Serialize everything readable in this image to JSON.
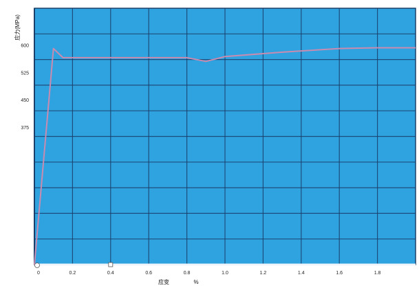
{
  "chart_data": {
    "type": "line",
    "title": "",
    "ylabel": "应力(MPa)",
    "xlabel": "应变",
    "x_unit": "%",
    "ylim": [
      0,
      700
    ],
    "xlim": [
      0,
      2
    ],
    "grid": true,
    "y_ticks": [
      {
        "value": 600,
        "label": "600"
      },
      {
        "value": 525,
        "label": "525"
      },
      {
        "value": 450,
        "label": "450"
      },
      {
        "value": 375,
        "label": "375"
      }
    ],
    "x_ticks": [
      {
        "value": 0,
        "label": "0"
      },
      {
        "value": 0.2,
        "label": "0.2"
      },
      {
        "value": 0.4,
        "label": "0.4"
      },
      {
        "value": 0.6,
        "label": "0.6"
      },
      {
        "value": 0.8,
        "label": "0.8"
      },
      {
        "value": 1.0,
        "label": "1.0"
      },
      {
        "value": 1.2,
        "label": "1.2"
      },
      {
        "value": 1.4,
        "label": "1.4"
      },
      {
        "value": 1.6,
        "label": "1.6"
      },
      {
        "value": 1.8,
        "label": "1.8"
      }
    ],
    "series": [
      {
        "x": [
          0,
          0.1,
          0.15,
          0.4,
          0.8,
          0.9,
          1.0,
          1.3,
          1.6,
          1.8,
          2.0
        ],
        "y": [
          0,
          590,
          565,
          565,
          565,
          555,
          568,
          580,
          590,
          592,
          592
        ]
      }
    ],
    "colors": {
      "plot_background": "#2fa3df",
      "grid": "#1b3f6b",
      "line": "#c98bb0",
      "x_axis": "#f2f6fb"
    }
  }
}
